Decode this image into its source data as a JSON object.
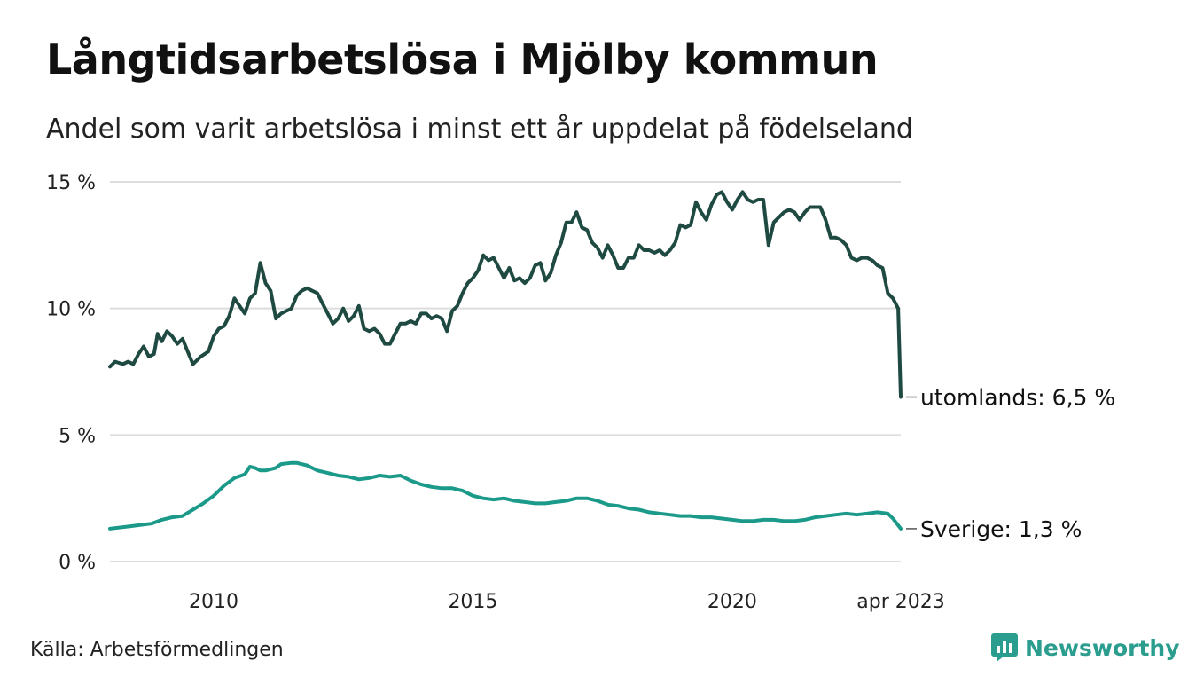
{
  "title": "Långtidsarbetslösa i Mjölby kommun",
  "subtitle": "Andel som varit arbetslösa i minst ett år uppdelat på födelseland",
  "source": "Källa: Arbetsförmedlingen",
  "brand": "Newsworthy",
  "colors": {
    "utomlands": "#1f4a42",
    "sverige": "#1b9a8a",
    "grid": "#dddddd",
    "brand": "#2a9d8f"
  },
  "chart_data": {
    "type": "line",
    "title": "Långtidsarbetslösa i Mjölby kommun",
    "ylim": [
      0,
      15
    ],
    "xlim": [
      2008.0,
      2023.25
    ],
    "y_ticks": [
      {
        "value": 0,
        "label": "0 %"
      },
      {
        "value": 5,
        "label": "5 %"
      },
      {
        "value": 10,
        "label": "10 %"
      },
      {
        "value": 15,
        "label": "15 %"
      }
    ],
    "x_ticks": [
      {
        "value": 2010,
        "label": "2010"
      },
      {
        "value": 2015,
        "label": "2015"
      },
      {
        "value": 2020,
        "label": "2020"
      },
      {
        "value": 2023.25,
        "label": "apr 2023"
      }
    ],
    "grid": true,
    "series": [
      {
        "name": "utomlands",
        "end_label": "utomlands: 6,5 %",
        "color": "#1f4a42",
        "points": [
          [
            2008.0,
            7.7
          ],
          [
            2008.1,
            7.9
          ],
          [
            2008.25,
            7.8
          ],
          [
            2008.35,
            7.9
          ],
          [
            2008.45,
            7.8
          ],
          [
            2008.55,
            8.2
          ],
          [
            2008.65,
            8.5
          ],
          [
            2008.75,
            8.1
          ],
          [
            2008.85,
            8.2
          ],
          [
            2008.92,
            9.0
          ],
          [
            2009.0,
            8.7
          ],
          [
            2009.1,
            9.1
          ],
          [
            2009.2,
            8.9
          ],
          [
            2009.3,
            8.6
          ],
          [
            2009.4,
            8.8
          ],
          [
            2009.5,
            8.3
          ],
          [
            2009.6,
            7.8
          ],
          [
            2009.75,
            8.1
          ],
          [
            2009.9,
            8.3
          ],
          [
            2010.0,
            8.9
          ],
          [
            2010.1,
            9.2
          ],
          [
            2010.2,
            9.3
          ],
          [
            2010.3,
            9.7
          ],
          [
            2010.4,
            10.4
          ],
          [
            2010.5,
            10.1
          ],
          [
            2010.6,
            9.8
          ],
          [
            2010.7,
            10.4
          ],
          [
            2010.8,
            10.6
          ],
          [
            2010.9,
            11.8
          ],
          [
            2011.0,
            11.0
          ],
          [
            2011.1,
            10.7
          ],
          [
            2011.2,
            9.6
          ],
          [
            2011.3,
            9.8
          ],
          [
            2011.4,
            9.9
          ],
          [
            2011.5,
            10.0
          ],
          [
            2011.6,
            10.5
          ],
          [
            2011.7,
            10.7
          ],
          [
            2011.8,
            10.8
          ],
          [
            2011.9,
            10.7
          ],
          [
            2012.0,
            10.6
          ],
          [
            2012.1,
            10.2
          ],
          [
            2012.2,
            9.8
          ],
          [
            2012.3,
            9.4
          ],
          [
            2012.4,
            9.6
          ],
          [
            2012.5,
            10.0
          ],
          [
            2012.6,
            9.5
          ],
          [
            2012.7,
            9.7
          ],
          [
            2012.8,
            10.1
          ],
          [
            2012.9,
            9.2
          ],
          [
            2013.0,
            9.1
          ],
          [
            2013.1,
            9.2
          ],
          [
            2013.2,
            9.0
          ],
          [
            2013.3,
            8.6
          ],
          [
            2013.4,
            8.6
          ],
          [
            2013.5,
            9.0
          ],
          [
            2013.6,
            9.4
          ],
          [
            2013.7,
            9.4
          ],
          [
            2013.8,
            9.5
          ],
          [
            2013.9,
            9.4
          ],
          [
            2014.0,
            9.8
          ],
          [
            2014.1,
            9.8
          ],
          [
            2014.2,
            9.6
          ],
          [
            2014.3,
            9.7
          ],
          [
            2014.4,
            9.6
          ],
          [
            2014.5,
            9.1
          ],
          [
            2014.6,
            9.9
          ],
          [
            2014.7,
            10.1
          ],
          [
            2014.8,
            10.6
          ],
          [
            2014.9,
            11.0
          ],
          [
            2015.0,
            11.2
          ],
          [
            2015.1,
            11.5
          ],
          [
            2015.2,
            12.1
          ],
          [
            2015.3,
            11.9
          ],
          [
            2015.4,
            12.0
          ],
          [
            2015.5,
            11.6
          ],
          [
            2015.6,
            11.2
          ],
          [
            2015.7,
            11.6
          ],
          [
            2015.8,
            11.1
          ],
          [
            2015.9,
            11.2
          ],
          [
            2016.0,
            11.0
          ],
          [
            2016.1,
            11.2
          ],
          [
            2016.2,
            11.7
          ],
          [
            2016.3,
            11.8
          ],
          [
            2016.4,
            11.1
          ],
          [
            2016.5,
            11.4
          ],
          [
            2016.6,
            12.1
          ],
          [
            2016.7,
            12.6
          ],
          [
            2016.8,
            13.4
          ],
          [
            2016.9,
            13.4
          ],
          [
            2017.0,
            13.8
          ],
          [
            2017.1,
            13.2
          ],
          [
            2017.2,
            13.1
          ],
          [
            2017.3,
            12.6
          ],
          [
            2017.4,
            12.4
          ],
          [
            2017.5,
            12.0
          ],
          [
            2017.6,
            12.5
          ],
          [
            2017.7,
            12.1
          ],
          [
            2017.8,
            11.6
          ],
          [
            2017.9,
            11.6
          ],
          [
            2018.0,
            12.0
          ],
          [
            2018.1,
            12.0
          ],
          [
            2018.2,
            12.5
          ],
          [
            2018.3,
            12.3
          ],
          [
            2018.4,
            12.3
          ],
          [
            2018.5,
            12.2
          ],
          [
            2018.6,
            12.3
          ],
          [
            2018.7,
            12.1
          ],
          [
            2018.8,
            12.3
          ],
          [
            2018.9,
            12.6
          ],
          [
            2019.0,
            13.3
          ],
          [
            2019.1,
            13.2
          ],
          [
            2019.2,
            13.3
          ],
          [
            2019.3,
            14.2
          ],
          [
            2019.4,
            13.8
          ],
          [
            2019.5,
            13.5
          ],
          [
            2019.6,
            14.1
          ],
          [
            2019.7,
            14.5
          ],
          [
            2019.8,
            14.6
          ],
          [
            2019.9,
            14.2
          ],
          [
            2020.0,
            13.9
          ],
          [
            2020.1,
            14.3
          ],
          [
            2020.2,
            14.6
          ],
          [
            2020.3,
            14.3
          ],
          [
            2020.4,
            14.2
          ],
          [
            2020.5,
            14.3
          ],
          [
            2020.6,
            14.3
          ],
          [
            2020.7,
            12.5
          ],
          [
            2020.8,
            13.4
          ],
          [
            2020.9,
            13.6
          ],
          [
            2021.0,
            13.8
          ],
          [
            2021.1,
            13.9
          ],
          [
            2021.2,
            13.8
          ],
          [
            2021.3,
            13.5
          ],
          [
            2021.4,
            13.8
          ],
          [
            2021.5,
            14.0
          ],
          [
            2021.6,
            14.0
          ],
          [
            2021.7,
            14.0
          ],
          [
            2021.8,
            13.5
          ],
          [
            2021.9,
            12.8
          ],
          [
            2022.0,
            12.8
          ],
          [
            2022.1,
            12.7
          ],
          [
            2022.2,
            12.5
          ],
          [
            2022.3,
            12.0
          ],
          [
            2022.4,
            11.9
          ],
          [
            2022.5,
            12.0
          ],
          [
            2022.6,
            12.0
          ],
          [
            2022.7,
            11.9
          ],
          [
            2022.8,
            11.7
          ],
          [
            2022.9,
            11.6
          ],
          [
            2023.0,
            10.6
          ],
          [
            2023.1,
            10.4
          ],
          [
            2023.2,
            10.0
          ],
          [
            2023.25,
            6.5
          ]
        ]
      },
      {
        "name": "sverige",
        "end_label": "Sverige: 1,3 %",
        "color": "#1b9a8a",
        "points": [
          [
            2008.0,
            1.3
          ],
          [
            2008.2,
            1.35
          ],
          [
            2008.4,
            1.4
          ],
          [
            2008.6,
            1.45
          ],
          [
            2008.8,
            1.5
          ],
          [
            2009.0,
            1.65
          ],
          [
            2009.2,
            1.75
          ],
          [
            2009.4,
            1.8
          ],
          [
            2009.6,
            2.05
          ],
          [
            2009.8,
            2.3
          ],
          [
            2010.0,
            2.6
          ],
          [
            2010.2,
            3.0
          ],
          [
            2010.4,
            3.3
          ],
          [
            2010.6,
            3.45
          ],
          [
            2010.7,
            3.75
          ],
          [
            2010.8,
            3.7
          ],
          [
            2010.9,
            3.6
          ],
          [
            2011.0,
            3.6
          ],
          [
            2011.2,
            3.7
          ],
          [
            2011.3,
            3.85
          ],
          [
            2011.5,
            3.9
          ],
          [
            2011.6,
            3.9
          ],
          [
            2011.8,
            3.8
          ],
          [
            2012.0,
            3.6
          ],
          [
            2012.2,
            3.5
          ],
          [
            2012.4,
            3.4
          ],
          [
            2012.6,
            3.35
          ],
          [
            2012.8,
            3.25
          ],
          [
            2013.0,
            3.3
          ],
          [
            2013.2,
            3.4
          ],
          [
            2013.4,
            3.35
          ],
          [
            2013.6,
            3.4
          ],
          [
            2013.8,
            3.2
          ],
          [
            2014.0,
            3.05
          ],
          [
            2014.2,
            2.95
          ],
          [
            2014.4,
            2.9
          ],
          [
            2014.6,
            2.9
          ],
          [
            2014.8,
            2.8
          ],
          [
            2015.0,
            2.6
          ],
          [
            2015.2,
            2.5
          ],
          [
            2015.4,
            2.45
          ],
          [
            2015.6,
            2.5
          ],
          [
            2015.8,
            2.4
          ],
          [
            2016.0,
            2.35
          ],
          [
            2016.2,
            2.3
          ],
          [
            2016.4,
            2.3
          ],
          [
            2016.6,
            2.35
          ],
          [
            2016.8,
            2.4
          ],
          [
            2017.0,
            2.5
          ],
          [
            2017.2,
            2.5
          ],
          [
            2017.4,
            2.4
          ],
          [
            2017.6,
            2.25
          ],
          [
            2017.8,
            2.2
          ],
          [
            2018.0,
            2.1
          ],
          [
            2018.2,
            2.05
          ],
          [
            2018.4,
            1.95
          ],
          [
            2018.6,
            1.9
          ],
          [
            2018.8,
            1.85
          ],
          [
            2019.0,
            1.8
          ],
          [
            2019.2,
            1.8
          ],
          [
            2019.4,
            1.75
          ],
          [
            2019.6,
            1.75
          ],
          [
            2019.8,
            1.7
          ],
          [
            2020.0,
            1.65
          ],
          [
            2020.2,
            1.6
          ],
          [
            2020.4,
            1.6
          ],
          [
            2020.6,
            1.65
          ],
          [
            2020.8,
            1.65
          ],
          [
            2021.0,
            1.6
          ],
          [
            2021.2,
            1.6
          ],
          [
            2021.4,
            1.65
          ],
          [
            2021.6,
            1.75
          ],
          [
            2021.8,
            1.8
          ],
          [
            2022.0,
            1.85
          ],
          [
            2022.2,
            1.9
          ],
          [
            2022.4,
            1.85
          ],
          [
            2022.6,
            1.9
          ],
          [
            2022.8,
            1.95
          ],
          [
            2023.0,
            1.9
          ],
          [
            2023.1,
            1.7
          ],
          [
            2023.25,
            1.3
          ]
        ]
      }
    ]
  }
}
